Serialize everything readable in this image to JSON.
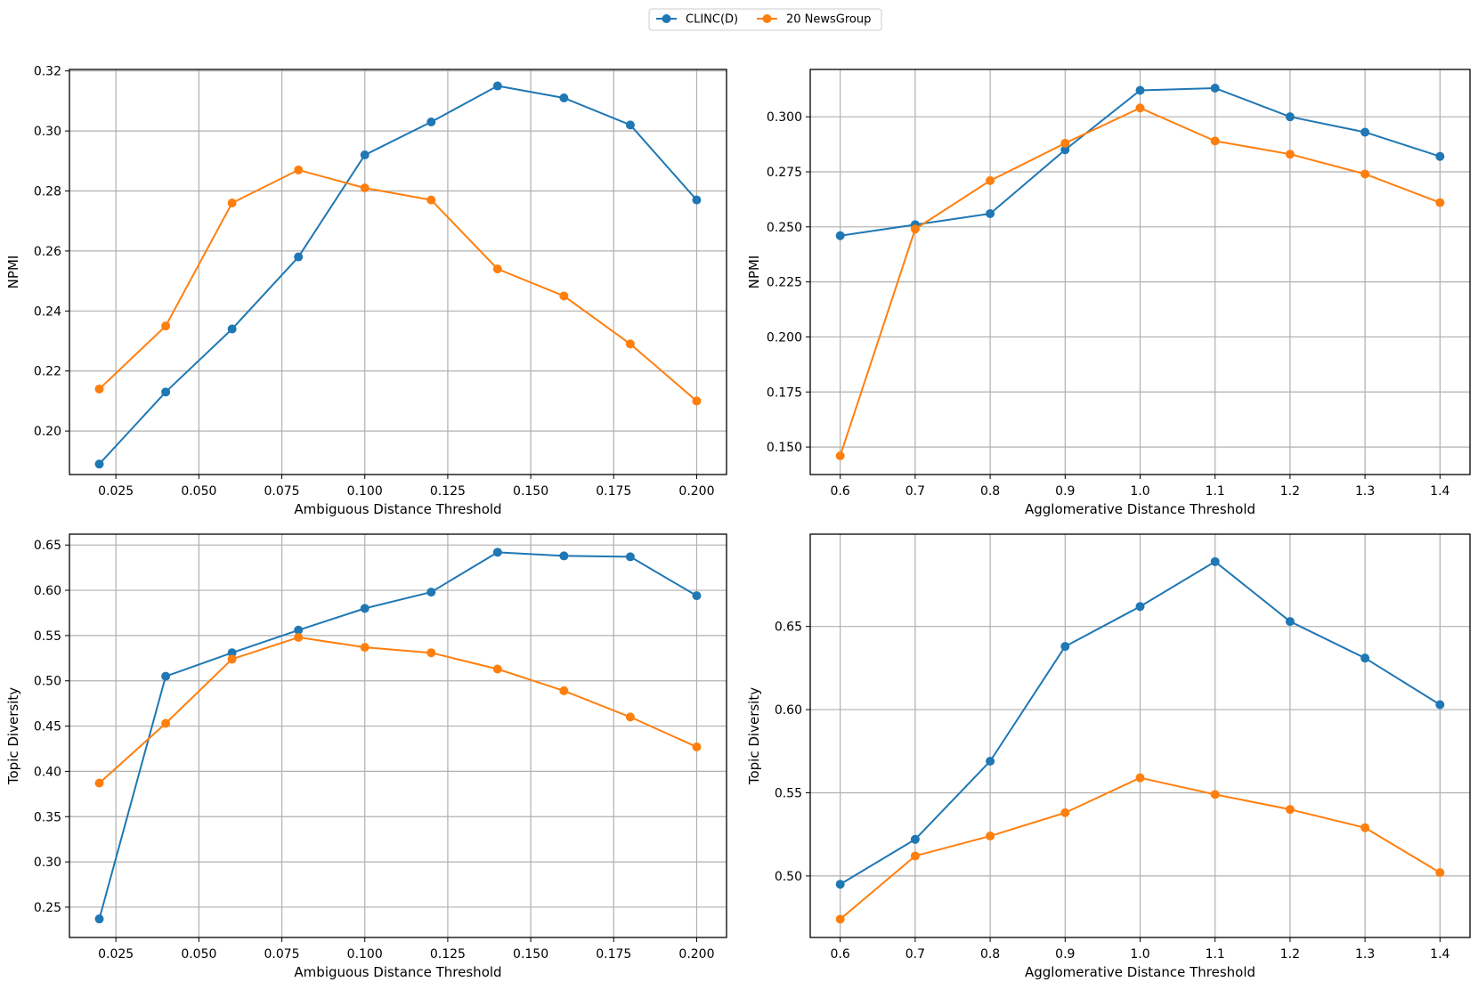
{
  "legend": {
    "entries": [
      {
        "name": "CLINC(D)",
        "color": "#1f77b4"
      },
      {
        "name": "20 NewsGroup",
        "color": "#ff7f0e"
      }
    ]
  },
  "chart_data": [
    {
      "type": "line",
      "xlabel": "Ambiguous Distance Threshold",
      "ylabel": "NPMI",
      "x": [
        0.02,
        0.04,
        0.06,
        0.08,
        0.1,
        0.12,
        0.14,
        0.16,
        0.18,
        0.2
      ],
      "xlim": [
        0.011,
        0.209
      ],
      "ylim": [
        0.1855,
        0.3205
      ],
      "xticks": [
        0.025,
        0.05,
        0.075,
        0.1,
        0.125,
        0.15,
        0.175,
        0.2
      ],
      "xtick_labels": [
        "0.025",
        "0.050",
        "0.075",
        "0.100",
        "0.125",
        "0.150",
        "0.175",
        "0.200"
      ],
      "yticks": [
        0.2,
        0.22,
        0.24,
        0.26,
        0.28,
        0.3,
        0.32
      ],
      "ytick_labels": [
        "0.20",
        "0.22",
        "0.24",
        "0.26",
        "0.28",
        "0.30",
        "0.32"
      ],
      "grid": true,
      "series": [
        {
          "name": "CLINC(D)",
          "color": "#1f77b4",
          "values": [
            0.189,
            0.213,
            0.234,
            0.258,
            0.292,
            0.303,
            0.315,
            0.311,
            0.302,
            0.277
          ]
        },
        {
          "name": "20 NewsGroup",
          "color": "#ff7f0e",
          "values": [
            0.214,
            0.235,
            0.276,
            0.287,
            0.281,
            0.277,
            0.254,
            0.245,
            0.229,
            0.21
          ]
        }
      ]
    },
    {
      "type": "line",
      "xlabel": "Agglomerative Distance Threshold",
      "ylabel": "NPMI",
      "x": [
        0.6,
        0.7,
        0.8,
        0.9,
        1.0,
        1.1,
        1.2,
        1.3,
        1.4
      ],
      "xlim": [
        0.56,
        1.44
      ],
      "ylim": [
        0.1375,
        0.3215
      ],
      "xticks": [
        0.6,
        0.7,
        0.8,
        0.9,
        1.0,
        1.1,
        1.2,
        1.3,
        1.4
      ],
      "xtick_labels": [
        "0.6",
        "0.7",
        "0.8",
        "0.9",
        "1.0",
        "1.1",
        "1.2",
        "1.3",
        "1.4"
      ],
      "yticks": [
        0.15,
        0.175,
        0.2,
        0.225,
        0.25,
        0.275,
        0.3
      ],
      "ytick_labels": [
        "0.150",
        "0.175",
        "0.200",
        "0.225",
        "0.250",
        "0.275",
        "0.300"
      ],
      "grid": true,
      "series": [
        {
          "name": "CLINC(D)",
          "color": "#1f77b4",
          "values": [
            0.246,
            0.251,
            0.256,
            0.285,
            0.312,
            0.313,
            0.3,
            0.293,
            0.282
          ]
        },
        {
          "name": "20 NewsGroup",
          "color": "#ff7f0e",
          "values": [
            0.146,
            0.249,
            0.271,
            0.288,
            0.304,
            0.289,
            0.283,
            0.274,
            0.261
          ]
        }
      ]
    },
    {
      "type": "line",
      "xlabel": "Ambiguous Distance Threshold",
      "ylabel": "Topic Diversity",
      "x": [
        0.02,
        0.04,
        0.06,
        0.08,
        0.1,
        0.12,
        0.14,
        0.16,
        0.18,
        0.2
      ],
      "xlim": [
        0.011,
        0.209
      ],
      "ylim": [
        0.2165,
        0.662
      ],
      "xticks": [
        0.025,
        0.05,
        0.075,
        0.1,
        0.125,
        0.15,
        0.175,
        0.2
      ],
      "xtick_labels": [
        "0.025",
        "0.050",
        "0.075",
        "0.100",
        "0.125",
        "0.150",
        "0.175",
        "0.200"
      ],
      "yticks": [
        0.25,
        0.3,
        0.35,
        0.4,
        0.45,
        0.5,
        0.55,
        0.6,
        0.65
      ],
      "ytick_labels": [
        "0.25",
        "0.30",
        "0.35",
        "0.40",
        "0.45",
        "0.50",
        "0.55",
        "0.60",
        "0.65"
      ],
      "grid": true,
      "series": [
        {
          "name": "CLINC(D)",
          "color": "#1f77b4",
          "values": [
            0.237,
            0.505,
            0.531,
            0.556,
            0.58,
            0.598,
            0.642,
            0.638,
            0.637,
            0.594
          ]
        },
        {
          "name": "20 NewsGroup",
          "color": "#ff7f0e",
          "values": [
            0.387,
            0.453,
            0.524,
            0.548,
            0.537,
            0.531,
            0.513,
            0.489,
            0.46,
            0.427
          ]
        }
      ]
    },
    {
      "type": "line",
      "xlabel": "Agglomerative Distance Threshold",
      "ylabel": "Topic Diversity",
      "x": [
        0.6,
        0.7,
        0.8,
        0.9,
        1.0,
        1.1,
        1.2,
        1.3,
        1.4
      ],
      "xlim": [
        0.56,
        1.44
      ],
      "ylim": [
        0.463,
        0.7055
      ],
      "xticks": [
        0.6,
        0.7,
        0.8,
        0.9,
        1.0,
        1.1,
        1.2,
        1.3,
        1.4
      ],
      "xtick_labels": [
        "0.6",
        "0.7",
        "0.8",
        "0.9",
        "1.0",
        "1.1",
        "1.2",
        "1.3",
        "1.4"
      ],
      "yticks": [
        0.5,
        0.55,
        0.6,
        0.65
      ],
      "ytick_labels": [
        "0.50",
        "0.55",
        "0.60",
        "0.65"
      ],
      "grid": true,
      "series": [
        {
          "name": "CLINC(D)",
          "color": "#1f77b4",
          "values": [
            0.495,
            0.522,
            0.569,
            0.638,
            0.662,
            0.689,
            0.653,
            0.631,
            0.603
          ]
        },
        {
          "name": "20 NewsGroup",
          "color": "#ff7f0e",
          "values": [
            0.474,
            0.512,
            0.524,
            0.538,
            0.559,
            0.549,
            0.54,
            0.529,
            0.502
          ]
        }
      ]
    }
  ]
}
